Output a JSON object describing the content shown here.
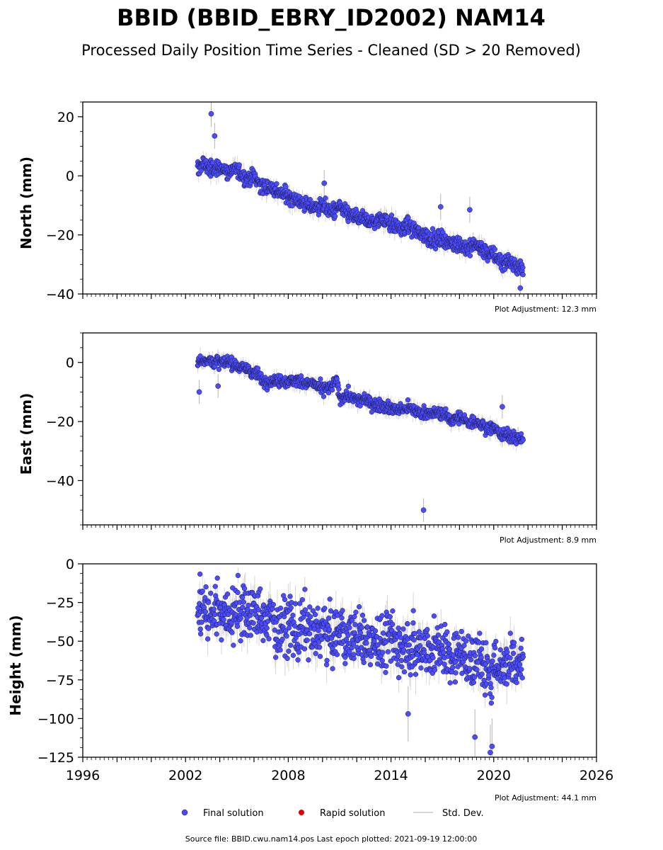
{
  "title": "BBID (BBID_EBRY_ID2002) NAM14",
  "subtitle": "Processed Daily Position Time Series - Cleaned (SD > 20 Removed)",
  "source_note": "Source file: BBID.cwu.nam14.pos  Last epoch plotted: 2021-09-19 12:00:00",
  "legend": [
    {
      "label": "Final solution",
      "color": "#4b4bff",
      "marker": "circle"
    },
    {
      "label": "Rapid solution",
      "color": "#e00000",
      "marker": "circle"
    },
    {
      "label": "Std. Dev.",
      "color": "#c8c8c8",
      "marker": "line"
    }
  ],
  "colors": {
    "final": "#4b4bff",
    "rapid": "#e00000",
    "stddev": "#b4b4b4",
    "edge": "#1a1a40"
  },
  "chart_data": [
    {
      "type": "scatter",
      "ylabel": "North (mm)",
      "xlim": [
        1996,
        2026
      ],
      "ylim": [
        -40,
        25
      ],
      "yticks": [
        20,
        0,
        -20,
        -40
      ],
      "yticklabels": [
        "20",
        "0",
        "−20",
        "−40"
      ],
      "xticklabels": [],
      "adjustment": "Plot Adjustment: 12.3 mm",
      "series": [
        {
          "x": [
            2002.7,
            2003.0,
            2003.5,
            2004.0,
            2004.5,
            2005.0,
            2005.5,
            2006.0,
            2006.5,
            2007.0,
            2007.5,
            2008.0,
            2008.5,
            2009.0,
            2009.5,
            2010.0,
            2010.5,
            2011.0,
            2011.5,
            2012.0,
            2012.5,
            2013.0,
            2013.5,
            2014.0,
            2014.5,
            2015.0,
            2015.5,
            2016.0,
            2016.5,
            2017.0,
            2017.5,
            2018.0,
            2018.5,
            2019.0,
            2019.5,
            2020.0,
            2020.5,
            2021.0,
            2021.5,
            2021.72
          ],
          "y": [
            2.0,
            4.5,
            2.0,
            3.0,
            1.0,
            2.5,
            -1.0,
            0.0,
            -4.0,
            -4.0,
            -6.0,
            -6.5,
            -8.0,
            -10.0,
            -10.5,
            -10.0,
            -12.0,
            -11.0,
            -13.0,
            -14.0,
            -15.0,
            -16.0,
            -14.0,
            -16.0,
            -18.0,
            -17.0,
            -19.0,
            -20.0,
            -22.0,
            -21.0,
            -23.0,
            -23.0,
            -25.0,
            -23.0,
            -26.0,
            -27.0,
            -29.0,
            -29.0,
            -31.0,
            -32.0
          ],
          "outliers": [
            [
              2003.5,
              21.0
            ],
            [
              2003.7,
              13.5
            ],
            [
              2016.9,
              -10.5
            ],
            [
              2018.6,
              -11.5
            ],
            [
              2010.1,
              -2.5
            ],
            [
              2021.55,
              -38.0
            ]
          ]
        }
      ]
    },
    {
      "type": "scatter",
      "ylabel": "East (mm)",
      "xlim": [
        1996,
        2026
      ],
      "ylim": [
        -55,
        10
      ],
      "yticks": [
        0,
        -20,
        -40
      ],
      "yticklabels": [
        "0",
        "−20",
        "−40"
      ],
      "xticklabels": [],
      "adjustment": "Plot Adjustment: 8.9 mm",
      "series": [
        {
          "x": [
            2002.7,
            2003.0,
            2003.5,
            2004.0,
            2004.5,
            2005.0,
            2005.5,
            2006.0,
            2006.2,
            2006.5,
            2007.0,
            2007.5,
            2008.0,
            2008.5,
            2009.0,
            2009.5,
            2010.0,
            2010.5,
            2010.8,
            2011.0,
            2011.5,
            2012.0,
            2012.5,
            2013.0,
            2013.5,
            2014.0,
            2014.5,
            2015.0,
            2015.5,
            2016.0,
            2016.5,
            2017.0,
            2017.5,
            2018.0,
            2018.5,
            2019.0,
            2019.5,
            2020.0,
            2020.5,
            2021.0,
            2021.72
          ],
          "y": [
            0.0,
            1.0,
            0.5,
            0.0,
            0.0,
            -1.0,
            -2.0,
            -3.5,
            -4.0,
            -6.0,
            -6.5,
            -6.0,
            -6.5,
            -6.0,
            -7.0,
            -7.5,
            -9.0,
            -8.5,
            -6.0,
            -12.0,
            -11.0,
            -13.0,
            -12.5,
            -14.0,
            -14.5,
            -15.5,
            -16.0,
            -15.5,
            -16.5,
            -17.0,
            -17.5,
            -17.0,
            -19.5,
            -18.5,
            -20.5,
            -20.0,
            -22.0,
            -22.0,
            -24.5,
            -25.0,
            -26.0
          ],
          "outliers": [
            [
              2002.8,
              -10.0
            ],
            [
              2015.9,
              -50.0
            ],
            [
              2003.9,
              -8.0
            ],
            [
              2020.5,
              -15.0
            ]
          ]
        }
      ]
    },
    {
      "type": "scatter",
      "ylabel": "Height (mm)",
      "xlim": [
        1996,
        2026
      ],
      "ylim": [
        -125,
        0
      ],
      "yticks": [
        0,
        -25,
        -50,
        -75,
        -100,
        -125
      ],
      "yticklabels": [
        "0",
        "−25",
        "−50",
        "−75",
        "−100",
        "−125"
      ],
      "xticks": [
        1996,
        2002,
        2008,
        2014,
        2020,
        2026
      ],
      "xticklabels": [
        "1996",
        "2002",
        "2008",
        "2014",
        "2020",
        "2026"
      ],
      "adjustment": "Plot Adjustment: 44.1 mm",
      "series": [
        {
          "x": [
            2002.7,
            2003.0,
            2003.5,
            2004.0,
            2004.5,
            2005.0,
            2005.5,
            2006.0,
            2006.5,
            2007.0,
            2007.5,
            2008.0,
            2008.5,
            2009.0,
            2009.5,
            2010.0,
            2010.5,
            2011.0,
            2011.5,
            2012.0,
            2012.5,
            2013.0,
            2013.5,
            2014.0,
            2014.5,
            2015.0,
            2015.5,
            2016.0,
            2016.5,
            2017.0,
            2017.5,
            2018.0,
            2018.5,
            2019.0,
            2019.5,
            2020.0,
            2020.5,
            2021.0,
            2021.72
          ],
          "y": [
            -30.0,
            -28.0,
            -33.0,
            -27.0,
            -35.0,
            -28.0,
            -34.0,
            -30.0,
            -38.0,
            -35.0,
            -42.0,
            -37.0,
            -45.0,
            -40.0,
            -47.0,
            -42.0,
            -48.0,
            -43.0,
            -50.0,
            -45.0,
            -52.0,
            -46.0,
            -53.0,
            -48.0,
            -55.0,
            -50.0,
            -57.0,
            -52.0,
            -58.0,
            -55.0,
            -62.0,
            -55.0,
            -66.0,
            -60.0,
            -70.0,
            -68.0,
            -65.0,
            -62.0,
            -60.0
          ],
          "outliers": [
            [
              2019.8,
              -122.0
            ],
            [
              2019.9,
              -118.0
            ],
            [
              2015.0,
              -97.0
            ],
            [
              2018.9,
              -112.0
            ]
          ]
        }
      ]
    }
  ]
}
